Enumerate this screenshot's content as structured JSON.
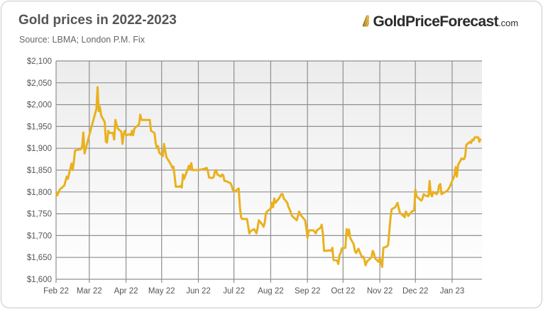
{
  "header": {
    "title": "Gold prices in 2022-2023",
    "source": "Source: LBMA; London P.M. Fix",
    "logo_name": "GoldPriceForecast",
    "logo_domain": ".com",
    "logo_mark": "///"
  },
  "chart_data": {
    "type": "line",
    "title": "Gold prices in 2022-2023",
    "xlabel": "",
    "ylabel": "",
    "ylim": [
      1600,
      2100
    ],
    "xlim": [
      "2022-02-01",
      "2023-01-26"
    ],
    "grid": true,
    "y_ticks": [
      1600,
      1650,
      1700,
      1750,
      1800,
      1850,
      1900,
      1950,
      2000,
      2050,
      2100
    ],
    "y_tick_labels": [
      "$1,600",
      "$1,650",
      "$1,700",
      "$1,750",
      "$1,800",
      "$1,850",
      "$1,900",
      "$1,950",
      "$2,000",
      "$2,050",
      "$2,100"
    ],
    "x_ticks": [
      "2022-02-01",
      "2022-03-01",
      "2022-04-01",
      "2022-05-01",
      "2022-06-01",
      "2022-07-01",
      "2022-08-01",
      "2022-09-01",
      "2022-10-01",
      "2022-11-01",
      "2022-12-01",
      "2023-01-01"
    ],
    "x_tick_labels": [
      "Feb 22",
      "Mar 22",
      "Apr 22",
      "May 22",
      "Jun 22",
      "Jul 22",
      "Aug 22",
      "Sep 22",
      "Oct 22",
      "Nov 22",
      "Dec 22",
      "Jan 23"
    ],
    "line_color": "#EAB11E",
    "series": [
      {
        "points": [
          [
            "2022-02-01",
            1800
          ],
          [
            "2022-02-02",
            1792
          ],
          [
            "2022-02-04",
            1805
          ],
          [
            "2022-02-08",
            1815
          ],
          [
            "2022-02-10",
            1835
          ],
          [
            "2022-02-11",
            1830
          ],
          [
            "2022-02-14",
            1865
          ],
          [
            "2022-02-15",
            1850
          ],
          [
            "2022-02-16",
            1870
          ],
          [
            "2022-02-17",
            1895
          ],
          [
            "2022-02-22",
            1898
          ],
          [
            "2022-02-23",
            1905
          ],
          [
            "2022-02-24",
            1936
          ],
          [
            "2022-02-25",
            1888
          ],
          [
            "2022-03-01",
            1930
          ],
          [
            "2022-03-02",
            1940
          ],
          [
            "2022-03-03",
            1950
          ],
          [
            "2022-03-07",
            1990
          ],
          [
            "2022-03-08",
            2040
          ],
          [
            "2022-03-09",
            1985
          ],
          [
            "2022-03-10",
            1995
          ],
          [
            "2022-03-11",
            1975
          ],
          [
            "2022-03-14",
            1960
          ],
          [
            "2022-03-15",
            1915
          ],
          [
            "2022-03-16",
            1913
          ],
          [
            "2022-03-17",
            1940
          ],
          [
            "2022-03-18",
            1935
          ],
          [
            "2022-03-21",
            1935
          ],
          [
            "2022-03-22",
            1920
          ],
          [
            "2022-03-23",
            1965
          ],
          [
            "2022-03-24",
            1955
          ],
          [
            "2022-03-25",
            1945
          ],
          [
            "2022-03-28",
            1938
          ],
          [
            "2022-03-29",
            1910
          ],
          [
            "2022-03-30",
            1932
          ],
          [
            "2022-03-31",
            1940
          ],
          [
            "2022-04-01",
            1930
          ],
          [
            "2022-04-04",
            1932
          ],
          [
            "2022-04-05",
            1930
          ],
          [
            "2022-04-06",
            1940
          ],
          [
            "2022-04-07",
            1930
          ],
          [
            "2022-04-08",
            1945
          ],
          [
            "2022-04-12",
            1955
          ],
          [
            "2022-04-13",
            1977
          ],
          [
            "2022-04-14",
            1965
          ],
          [
            "2022-04-19",
            1965
          ],
          [
            "2022-04-21",
            1965
          ],
          [
            "2022-04-22",
            1940
          ],
          [
            "2022-04-25",
            1935
          ],
          [
            "2022-04-26",
            1912
          ],
          [
            "2022-04-27",
            1900
          ],
          [
            "2022-04-28",
            1905
          ],
          [
            "2022-04-29",
            1890
          ],
          [
            "2022-05-02",
            1882
          ],
          [
            "2022-05-03",
            1910
          ],
          [
            "2022-05-05",
            1880
          ],
          [
            "2022-05-09",
            1862
          ],
          [
            "2022-05-10",
            1855
          ],
          [
            "2022-05-11",
            1858
          ],
          [
            "2022-05-12",
            1835
          ],
          [
            "2022-05-13",
            1812
          ],
          [
            "2022-05-16",
            1812
          ],
          [
            "2022-05-17",
            1814
          ],
          [
            "2022-05-18",
            1810
          ],
          [
            "2022-05-19",
            1840
          ],
          [
            "2022-05-20",
            1830
          ],
          [
            "2022-05-23",
            1852
          ],
          [
            "2022-05-24",
            1860
          ],
          [
            "2022-05-25",
            1852
          ],
          [
            "2022-05-26",
            1866
          ],
          [
            "2022-05-27",
            1850
          ],
          [
            "2022-06-01",
            1850
          ],
          [
            "2022-06-06",
            1853
          ],
          [
            "2022-06-08",
            1855
          ],
          [
            "2022-06-09",
            1848
          ],
          [
            "2022-06-10",
            1833
          ],
          [
            "2022-06-13",
            1832
          ],
          [
            "2022-06-14",
            1835
          ],
          [
            "2022-06-15",
            1848
          ],
          [
            "2022-06-16",
            1850
          ],
          [
            "2022-06-17",
            1840
          ],
          [
            "2022-06-20",
            1835
          ],
          [
            "2022-06-21",
            1840
          ],
          [
            "2022-06-22",
            1838
          ],
          [
            "2022-06-23",
            1825
          ],
          [
            "2022-06-24",
            1825
          ],
          [
            "2022-06-28",
            1820
          ],
          [
            "2022-06-29",
            1815
          ],
          [
            "2022-06-30",
            1805
          ],
          [
            "2022-07-01",
            1800
          ],
          [
            "2022-07-05",
            1808
          ],
          [
            "2022-07-06",
            1765
          ],
          [
            "2022-07-07",
            1742
          ],
          [
            "2022-07-08",
            1738
          ],
          [
            "2022-07-12",
            1738
          ],
          [
            "2022-07-14",
            1705
          ],
          [
            "2022-07-15",
            1710
          ],
          [
            "2022-07-18",
            1715
          ],
          [
            "2022-07-20",
            1705
          ],
          [
            "2022-07-21",
            1718
          ],
          [
            "2022-07-22",
            1735
          ],
          [
            "2022-07-25",
            1725
          ],
          [
            "2022-07-26",
            1720
          ],
          [
            "2022-07-27",
            1730
          ],
          [
            "2022-07-28",
            1752
          ],
          [
            "2022-07-29",
            1755
          ],
          [
            "2022-08-01",
            1762
          ],
          [
            "2022-08-02",
            1775
          ],
          [
            "2022-08-03",
            1765
          ],
          [
            "2022-08-04",
            1785
          ],
          [
            "2022-08-05",
            1775
          ],
          [
            "2022-08-08",
            1785
          ],
          [
            "2022-08-10",
            1795
          ],
          [
            "2022-08-11",
            1795
          ],
          [
            "2022-08-12",
            1785
          ],
          [
            "2022-08-15",
            1775
          ],
          [
            "2022-08-16",
            1765
          ],
          [
            "2022-08-17",
            1760
          ],
          [
            "2022-08-18",
            1752
          ],
          [
            "2022-08-19",
            1745
          ],
          [
            "2022-08-23",
            1735
          ],
          [
            "2022-08-24",
            1745
          ],
          [
            "2022-08-25",
            1755
          ],
          [
            "2022-08-26",
            1748
          ],
          [
            "2022-08-30",
            1735
          ],
          [
            "2022-08-31",
            1718
          ],
          [
            "2022-09-01",
            1695
          ],
          [
            "2022-09-02",
            1712
          ],
          [
            "2022-09-06",
            1712
          ],
          [
            "2022-09-08",
            1705
          ],
          [
            "2022-09-09",
            1712
          ],
          [
            "2022-09-12",
            1718
          ],
          [
            "2022-09-13",
            1725
          ],
          [
            "2022-09-14",
            1705
          ],
          [
            "2022-09-15",
            1665
          ],
          [
            "2022-09-16",
            1665
          ],
          [
            "2022-09-20",
            1666
          ],
          [
            "2022-09-21",
            1665
          ],
          [
            "2022-09-22",
            1672
          ],
          [
            "2022-09-23",
            1644
          ],
          [
            "2022-09-26",
            1643
          ],
          [
            "2022-09-27",
            1635
          ],
          [
            "2022-09-28",
            1655
          ],
          [
            "2022-09-29",
            1660
          ],
          [
            "2022-09-30",
            1671
          ],
          [
            "2022-10-03",
            1672
          ],
          [
            "2022-10-04",
            1715
          ],
          [
            "2022-10-05",
            1700
          ],
          [
            "2022-10-06",
            1714
          ],
          [
            "2022-10-07",
            1695
          ],
          [
            "2022-10-10",
            1680
          ],
          [
            "2022-10-11",
            1665
          ],
          [
            "2022-10-12",
            1660
          ],
          [
            "2022-10-13",
            1665
          ],
          [
            "2022-10-14",
            1670
          ],
          [
            "2022-10-17",
            1650
          ],
          [
            "2022-10-18",
            1652
          ],
          [
            "2022-10-19",
            1645
          ],
          [
            "2022-10-20",
            1632
          ],
          [
            "2022-10-21",
            1640
          ],
          [
            "2022-10-24",
            1648
          ],
          [
            "2022-10-25",
            1650
          ],
          [
            "2022-10-26",
            1665
          ],
          [
            "2022-10-27",
            1660
          ],
          [
            "2022-10-28",
            1648
          ],
          [
            "2022-10-31",
            1640
          ],
          [
            "2022-11-01",
            1648
          ],
          [
            "2022-11-02",
            1640
          ],
          [
            "2022-11-03",
            1628
          ],
          [
            "2022-11-04",
            1672
          ],
          [
            "2022-11-07",
            1675
          ],
          [
            "2022-11-08",
            1678
          ],
          [
            "2022-11-09",
            1710
          ],
          [
            "2022-11-10",
            1740
          ],
          [
            "2022-11-11",
            1760
          ],
          [
            "2022-11-14",
            1765
          ],
          [
            "2022-11-16",
            1775
          ],
          [
            "2022-11-17",
            1762
          ],
          [
            "2022-11-18",
            1752
          ],
          [
            "2022-11-21",
            1745
          ],
          [
            "2022-11-22",
            1742
          ],
          [
            "2022-11-23",
            1755
          ],
          [
            "2022-11-24",
            1750
          ],
          [
            "2022-11-25",
            1745
          ],
          [
            "2022-11-28",
            1755
          ],
          [
            "2022-11-30",
            1758
          ],
          [
            "2022-12-01",
            1805
          ],
          [
            "2022-12-02",
            1790
          ],
          [
            "2022-12-06",
            1780
          ],
          [
            "2022-12-07",
            1785
          ],
          [
            "2022-12-08",
            1795
          ],
          [
            "2022-12-09",
            1792
          ],
          [
            "2022-12-12",
            1790
          ],
          [
            "2022-12-13",
            1825
          ],
          [
            "2022-12-14",
            1795
          ],
          [
            "2022-12-15",
            1790
          ],
          [
            "2022-12-16",
            1800
          ],
          [
            "2022-12-19",
            1795
          ],
          [
            "2022-12-20",
            1800
          ],
          [
            "2022-12-21",
            1815
          ],
          [
            "2022-12-22",
            1818
          ],
          [
            "2022-12-23",
            1795
          ],
          [
            "2022-12-28",
            1803
          ],
          [
            "2022-12-30",
            1812
          ],
          [
            "2023-01-03",
            1838
          ],
          [
            "2023-01-04",
            1857
          ],
          [
            "2023-01-05",
            1835
          ],
          [
            "2023-01-06",
            1862
          ],
          [
            "2023-01-09",
            1877
          ],
          [
            "2023-01-10",
            1875
          ],
          [
            "2023-01-11",
            1875
          ],
          [
            "2023-01-12",
            1882
          ],
          [
            "2023-01-13",
            1908
          ],
          [
            "2023-01-16",
            1915
          ],
          [
            "2023-01-17",
            1912
          ],
          [
            "2023-01-18",
            1920
          ],
          [
            "2023-01-19",
            1918
          ],
          [
            "2023-01-20",
            1925
          ],
          [
            "2023-01-23",
            1925
          ],
          [
            "2023-01-24",
            1915
          ],
          [
            "2023-01-25",
            1922
          ]
        ]
      }
    ]
  }
}
